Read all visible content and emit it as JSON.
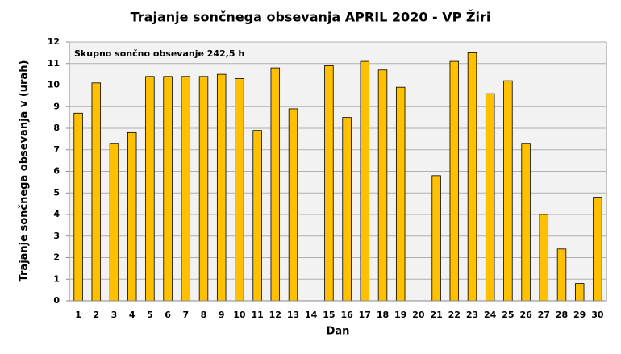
{
  "chart_data": {
    "type": "bar",
    "title": "Trajanje  sončnega obsevanja  APRIL 2020 - VP Žiri",
    "annotation": "Skupno sončno obsevanje 242,5 h",
    "x_label": "Dan",
    "y_label": "Trajanje  sončnega obsevanja  v (urah)",
    "categories": [
      "1",
      "2",
      "3",
      "4",
      "5",
      "6",
      "7",
      "8",
      "9",
      "10",
      "11",
      "12",
      "13",
      "14",
      "15",
      "16",
      "17",
      "18",
      "19",
      "20",
      "21",
      "22",
      "23",
      "24",
      "25",
      "26",
      "27",
      "28",
      "29",
      "30"
    ],
    "values": [
      8.7,
      10.1,
      7.3,
      7.8,
      10.4,
      10.4,
      10.4,
      10.4,
      10.5,
      10.3,
      7.9,
      10.8,
      8.9,
      0,
      10.9,
      8.5,
      11.1,
      10.7,
      9.9,
      0,
      5.8,
      11.1,
      11.5,
      9.6,
      10.2,
      7.3,
      4.0,
      2.4,
      0.8,
      4.8
    ],
    "color": "#ffc000",
    "ylim": [
      0,
      12
    ],
    "yticks": [
      0,
      1,
      2,
      3,
      4,
      5,
      6,
      7,
      8,
      9,
      10,
      11,
      12
    ],
    "grid": true
  }
}
